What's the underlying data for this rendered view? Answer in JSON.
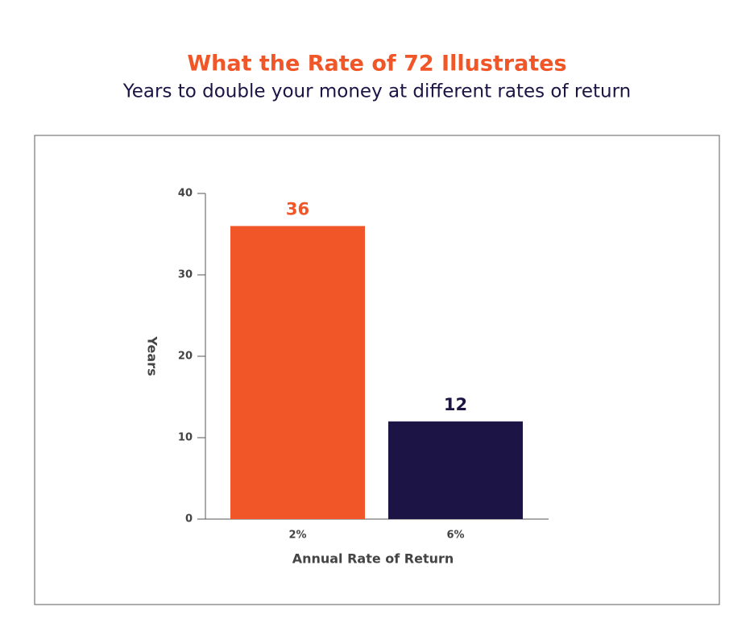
{
  "chart_data": {
    "type": "bar",
    "title": "What the Rate of 72 Illustrates",
    "subtitle": "Years to double your money at different rates of return",
    "x_label": "Annual Rate of Return",
    "y_label": "Years",
    "categories": [
      "2%",
      "6%"
    ],
    "values": [
      36,
      12
    ],
    "colors": [
      "#f05627",
      "#1b1445"
    ],
    "ylim": [
      0,
      40
    ],
    "yticks": [
      0,
      10,
      20,
      30,
      40
    ],
    "grid": false
  }
}
